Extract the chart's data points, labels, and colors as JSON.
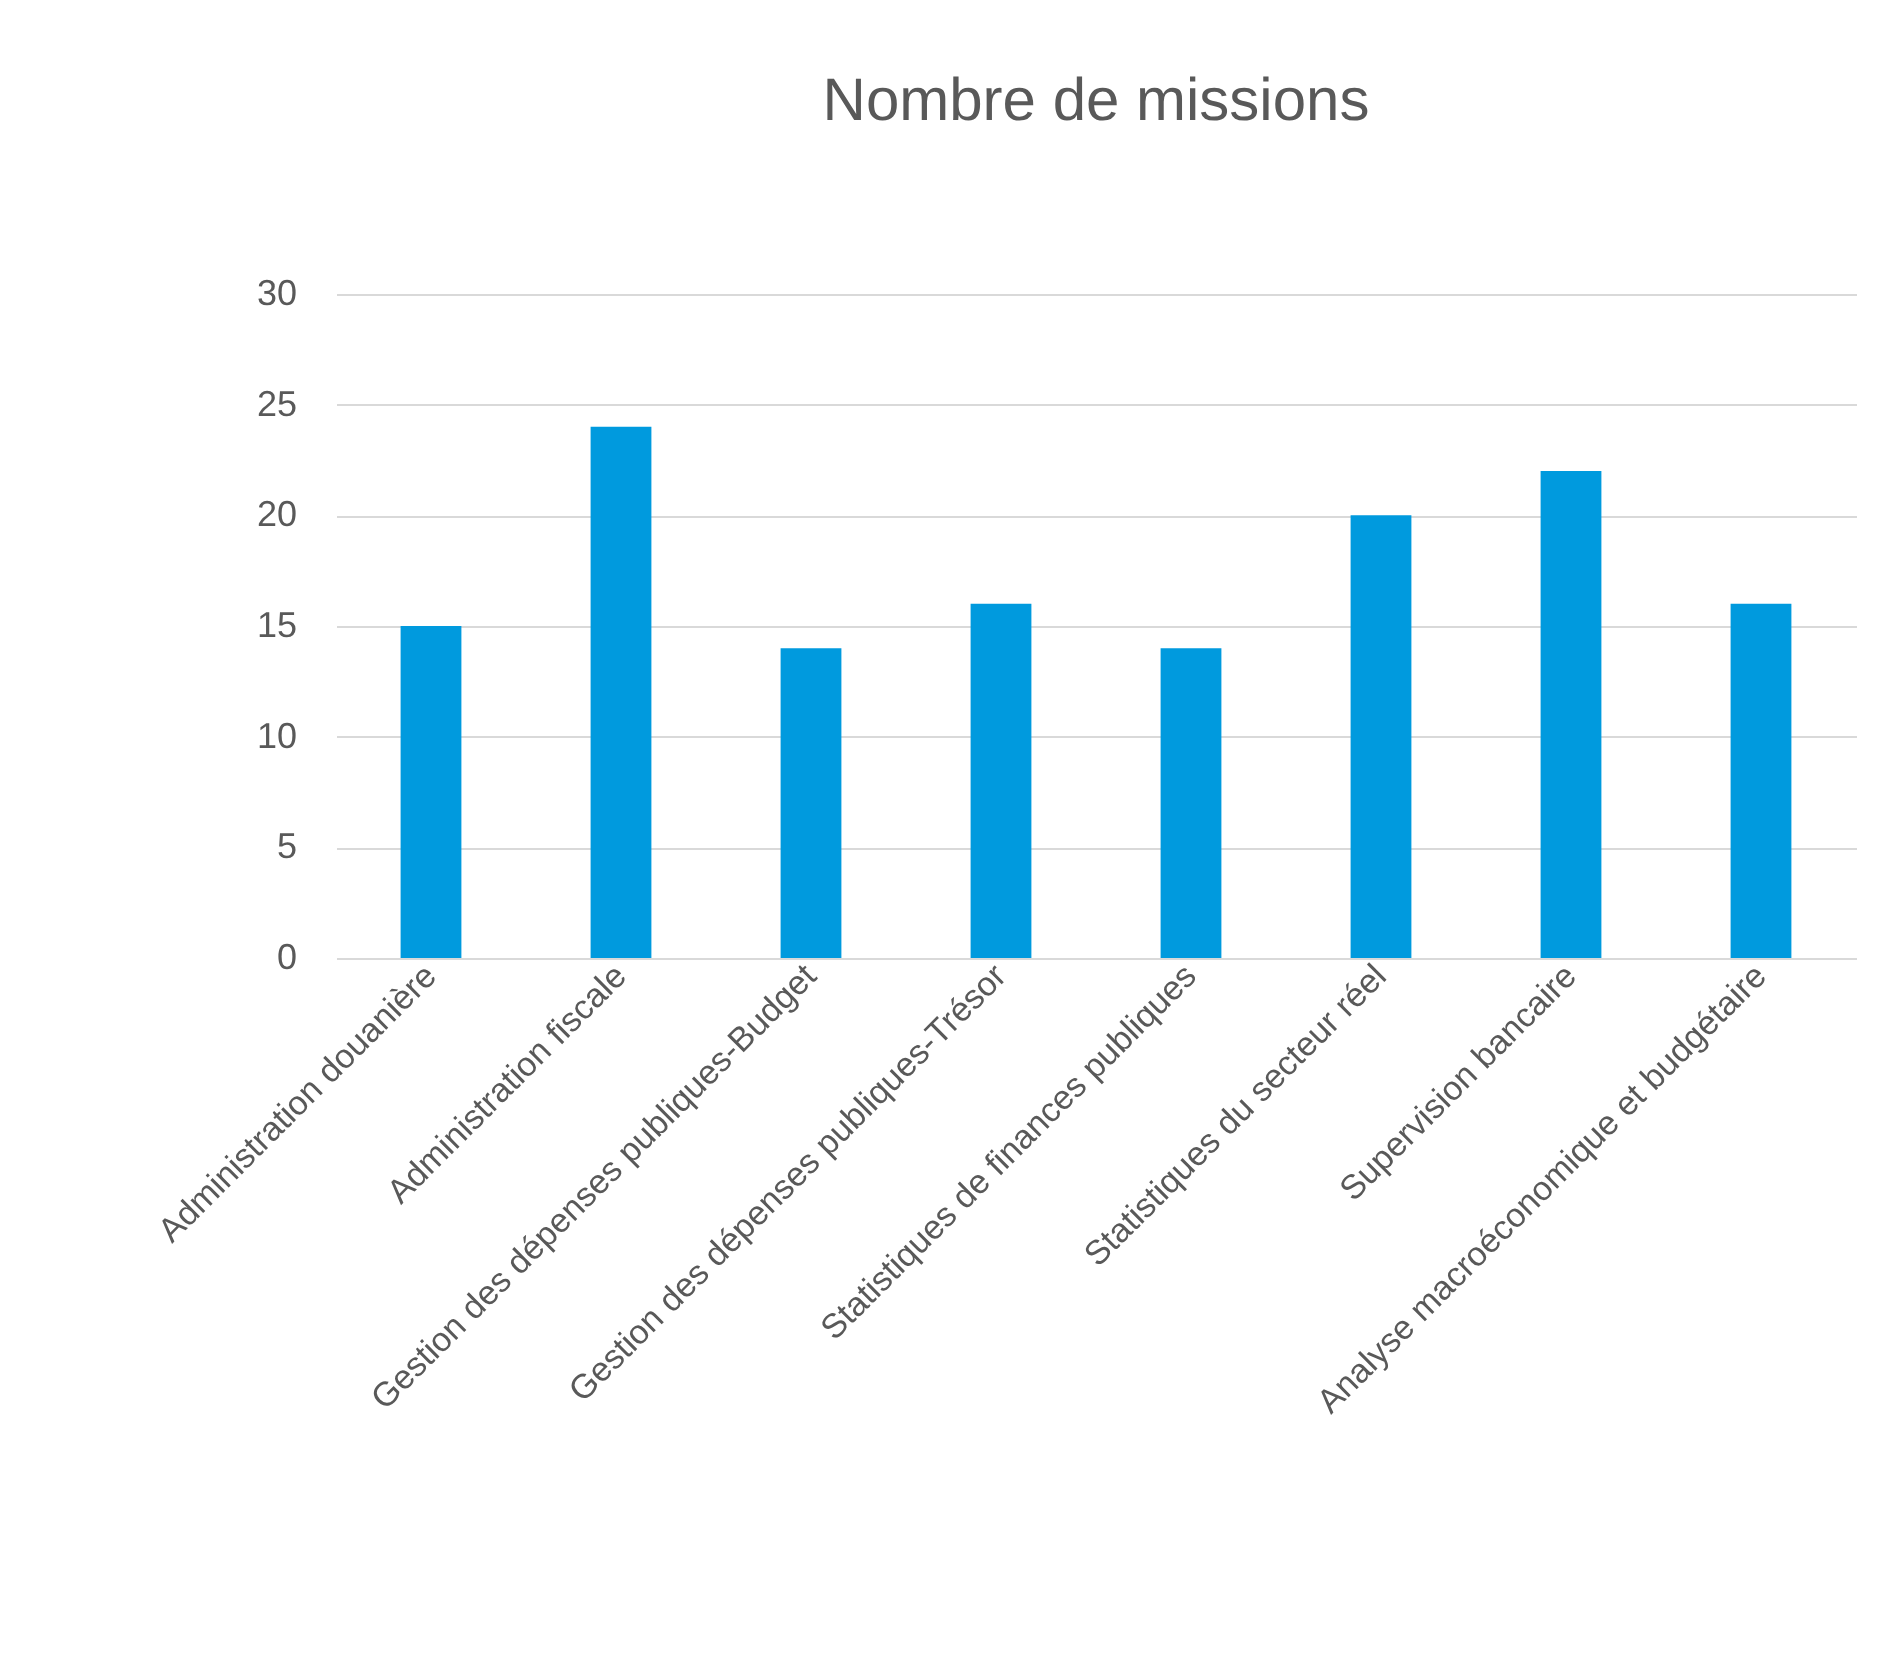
{
  "chart_data": {
    "type": "bar",
    "title": "Nombre de missions",
    "categories": [
      "Administration douanière",
      "Administration fiscale",
      "Gestion des dépenses publiques-Budget",
      "Gestion des dépenses publiques-Trésor",
      "Statistiques de finances publiques",
      "Statistiques du secteur réel",
      "Supervision bancaire",
      "Analyse macroéconomique et budgétaire"
    ],
    "values": [
      15,
      24,
      14,
      16,
      14,
      20,
      22,
      16
    ],
    "color": "#009ade",
    "ylim": [
      0,
      30
    ],
    "yticks": [
      0,
      5,
      10,
      15,
      20,
      25,
      30
    ],
    "grid": "y"
  }
}
